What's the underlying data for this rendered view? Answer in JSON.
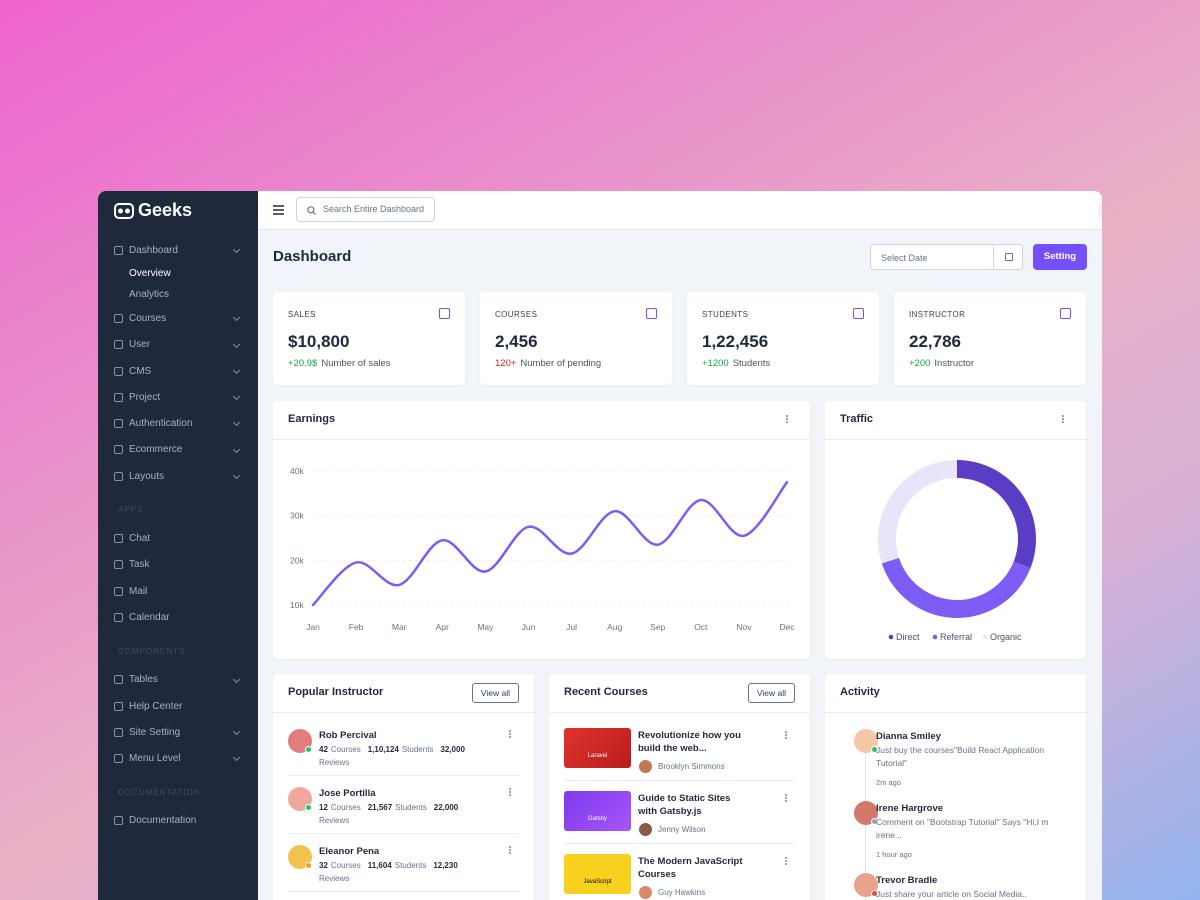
{
  "brand": "Geeks",
  "search_placeholder": "Search Entire Dashboard",
  "sidebar": {
    "sections": [
      {
        "items": [
          {
            "label": "Dashboard",
            "chevron": true,
            "children": [
              {
                "label": "Overview",
                "active": true
              },
              {
                "label": "Analytics"
              }
            ]
          },
          {
            "label": "Courses",
            "chevron": true
          },
          {
            "label": "User",
            "chevron": true
          },
          {
            "label": "CMS",
            "chevron": true
          },
          {
            "label": "Project",
            "chevron": true
          },
          {
            "label": "Authentication",
            "chevron": true
          },
          {
            "label": "Ecommerce",
            "chevron": true
          },
          {
            "label": "Layouts",
            "chevron": true
          }
        ]
      },
      {
        "heading": "APPS",
        "items": [
          {
            "label": "Chat"
          },
          {
            "label": "Task"
          },
          {
            "label": "Mail"
          },
          {
            "label": "Calendar"
          }
        ]
      },
      {
        "heading": "COMPONENTS",
        "items": [
          {
            "label": "Tables",
            "chevron": true
          },
          {
            "label": "Help Center"
          },
          {
            "label": "Site Setting",
            "chevron": true
          },
          {
            "label": "Menu Level",
            "chevron": true
          }
        ]
      },
      {
        "heading": "DOCUMENTATION",
        "items": [
          {
            "label": "Documentation"
          }
        ]
      }
    ]
  },
  "header": {
    "title": "Dashboard",
    "date_placeholder": "Select Date",
    "button": "Setting"
  },
  "stats": [
    {
      "label": "SALES",
      "value": "$10,800",
      "delta": "+20.9$",
      "note": "Number of sales",
      "delta_color": "#16a34a"
    },
    {
      "label": "COURSES",
      "value": "2,456",
      "delta": "120+",
      "note": "Number of pending",
      "delta_color": "#dc2626"
    },
    {
      "label": "STUDENTS",
      "value": "1,22,456",
      "delta": "+1200",
      "note": "Students",
      "delta_color": "#16a34a"
    },
    {
      "label": "INSTRUCTOR",
      "value": "22,786",
      "delta": "+200",
      "note": "Instructor",
      "delta_color": "#16a34a"
    }
  ],
  "chart_data": [
    {
      "type": "line",
      "title": "Earnings",
      "categories": [
        "Jan",
        "Feb",
        "Mar",
        "Apr",
        "May",
        "Jun",
        "Jul",
        "Aug",
        "Sep",
        "Oct",
        "Nov",
        "Dec"
      ],
      "values": [
        10000,
        19500,
        14500,
        24500,
        17500,
        27500,
        21500,
        31000,
        23500,
        33500,
        25500,
        37500
      ],
      "color": "#7c5cf5",
      "ylim": [
        10000,
        40000
      ],
      "yticks": [
        {
          "value": 10000,
          "label": "10k"
        },
        {
          "value": 20000,
          "label": "20k"
        },
        {
          "value": 30000,
          "label": "30k"
        },
        {
          "value": 40000,
          "label": "40k"
        }
      ],
      "grid": true
    },
    {
      "type": "pie",
      "title": "Traffic",
      "categories": [
        "Direct",
        "Referral",
        "Organic"
      ],
      "values": [
        31,
        39,
        30
      ],
      "colors": [
        "#5b3cc4",
        "#7c5cf5",
        "#e8e5fb"
      ],
      "donut": true
    }
  ],
  "popular_instructor": {
    "title": "Popular Instructor",
    "action": "View all",
    "rows": [
      {
        "name": "Rob Percival",
        "courses": "42",
        "courses_label": "Courses",
        "students": "1,10,124",
        "students_label": "Students",
        "reviews": "32,000",
        "reviews_label": "Reviews"
      },
      {
        "name": "Jose Portilla",
        "courses": "12",
        "courses_label": "Courses",
        "students": "21,567",
        "students_label": "Students",
        "reviews": "22,000",
        "reviews_label": "Reviews"
      },
      {
        "name": "Eleanor Pena",
        "courses": "32",
        "courses_label": "Courses",
        "students": "11,604",
        "students_label": "Students",
        "reviews": "12,230",
        "reviews_label": "Reviews"
      }
    ]
  },
  "recent_courses": {
    "title": "Recent Courses",
    "action": "View all",
    "rows": [
      {
        "title": "Revolutionize how you build the web...",
        "author": "Brooklyn Simmons",
        "thumb": "Laravel"
      },
      {
        "title": "Guide to Static Sites with Gatsby.js",
        "author": "Jenny Wilson",
        "thumb": "Gatsby"
      },
      {
        "title": "The Modern JavaScript Courses",
        "author": "Guy Hawkins",
        "thumb": "JavaScript"
      }
    ]
  },
  "activity": {
    "title": "Activity",
    "rows": [
      {
        "name": "Dianna Smiley",
        "text": "Just buy the courses\"Build React Application Tutorial\"",
        "time": "2m ago"
      },
      {
        "name": "Irene Hargrove",
        "text": "Comment on \"Bootstrap Tutorial\" Says \"Hi,I m irene...",
        "time": "1 hour ago"
      },
      {
        "name": "Trevor Bradle",
        "text": "Just share your article on Social Media..",
        "time": ""
      }
    ]
  }
}
